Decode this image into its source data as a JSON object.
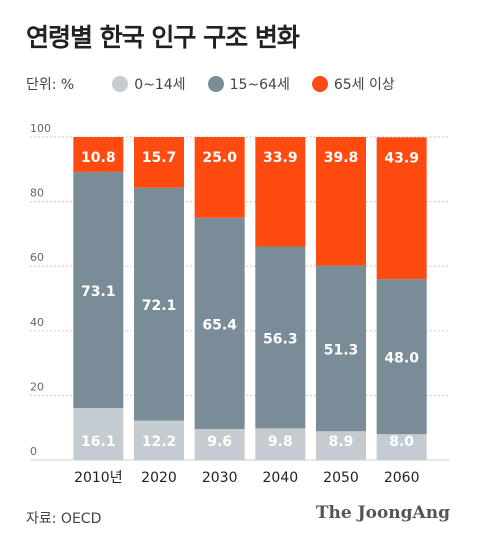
{
  "header": {
    "title": "연령별 한국 인구 구조 변화",
    "unit_label": "단위: %"
  },
  "legend": [
    {
      "label": "0~14세",
      "color": "#c4cbd1"
    },
    {
      "label": "15~64세",
      "color": "#798c97"
    },
    {
      "label": "65세 이상",
      "color": "#ff4a10"
    }
  ],
  "footer": {
    "source": "자료: OECD",
    "brand": "The JoongAng"
  },
  "chart_data": {
    "type": "bar",
    "stacked": true,
    "categories": [
      "2010년",
      "2020",
      "2030",
      "2040",
      "2050",
      "2060"
    ],
    "series": [
      {
        "name": "0~14세",
        "values": [
          16.1,
          12.2,
          9.6,
          9.8,
          8.9,
          8.0
        ],
        "color": "#c4cbd1"
      },
      {
        "name": "15~64세",
        "values": [
          73.1,
          72.1,
          65.4,
          56.3,
          51.3,
          48.0
        ],
        "color": "#798c97"
      },
      {
        "name": "65세 이상",
        "values": [
          10.8,
          15.7,
          25.0,
          33.9,
          39.8,
          43.9
        ],
        "color": "#ff4a10"
      }
    ],
    "data_labels": [
      [
        "16.1",
        "12.2",
        "9.6",
        "9.8",
        "8.9",
        "8.0"
      ],
      [
        "73.1",
        "72.1",
        "65.4",
        "56.3",
        "51.3",
        "48.0"
      ],
      [
        "10.8",
        "15.7",
        "25.0",
        "33.9",
        "39.8",
        "43.9"
      ]
    ],
    "ylim": [
      0,
      100
    ],
    "yticks": [
      0,
      20,
      40,
      60,
      80,
      100
    ],
    "grid": true
  }
}
